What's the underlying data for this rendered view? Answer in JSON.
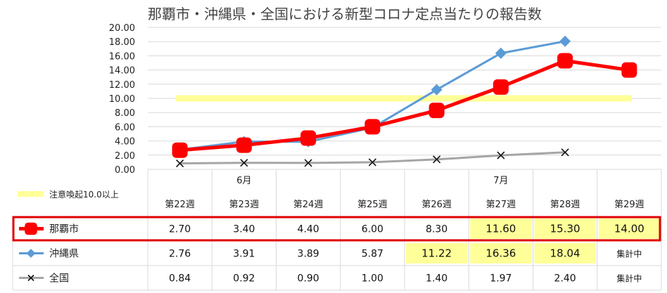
{
  "chart_data": {
    "type": "line",
    "title": "那覇市・沖縄県・全国における新型コロナ定点当たりの報告数",
    "ylim": [
      0,
      20
    ],
    "yticks": [
      "0.00",
      "2.00",
      "4.00",
      "6.00",
      "8.00",
      "10.00",
      "12.00",
      "14.00",
      "16.00",
      "18.00",
      "20.00"
    ],
    "grid": true,
    "categories": [
      "第22週",
      "第23週",
      "第24週",
      "第25週",
      "第26週",
      "第27週",
      "第28週",
      "第29週"
    ],
    "month_labels": [
      {
        "index": 1,
        "label": "6月"
      },
      {
        "index": 5,
        "label": "7月"
      }
    ],
    "threshold": {
      "value": 10.0,
      "label": "注意喚起10.0以上",
      "color": "#ffff99"
    },
    "series": [
      {
        "name": "那覇市",
        "color": "#ff0000",
        "marker": "round-square",
        "values": [
          2.7,
          3.4,
          4.4,
          6.0,
          8.3,
          11.6,
          15.3,
          14.0
        ],
        "cells": [
          "2.70",
          "3.40",
          "4.40",
          "6.00",
          "8.30",
          "11.60",
          "15.30",
          "14.00"
        ],
        "highlight": [
          false,
          false,
          false,
          false,
          false,
          true,
          true,
          true
        ]
      },
      {
        "name": "沖縄県",
        "color": "#5b9bd5",
        "marker": "diamond",
        "values": [
          2.76,
          3.91,
          3.89,
          5.87,
          11.22,
          16.36,
          18.04,
          null
        ],
        "cells": [
          "2.76",
          "3.91",
          "3.89",
          "5.87",
          "11.22",
          "16.36",
          "18.04",
          "集計中"
        ],
        "highlight": [
          false,
          false,
          false,
          false,
          true,
          true,
          true,
          false
        ]
      },
      {
        "name": "全国",
        "color": "#a5a5a5",
        "marker": "x",
        "values": [
          0.84,
          0.92,
          0.9,
          1.0,
          1.4,
          1.97,
          2.4,
          null
        ],
        "cells": [
          "0.84",
          "0.92",
          "0.90",
          "1.00",
          "1.40",
          "1.97",
          "2.40",
          "集計中"
        ],
        "highlight": [
          false,
          false,
          false,
          false,
          false,
          false,
          false,
          false
        ]
      }
    ]
  }
}
